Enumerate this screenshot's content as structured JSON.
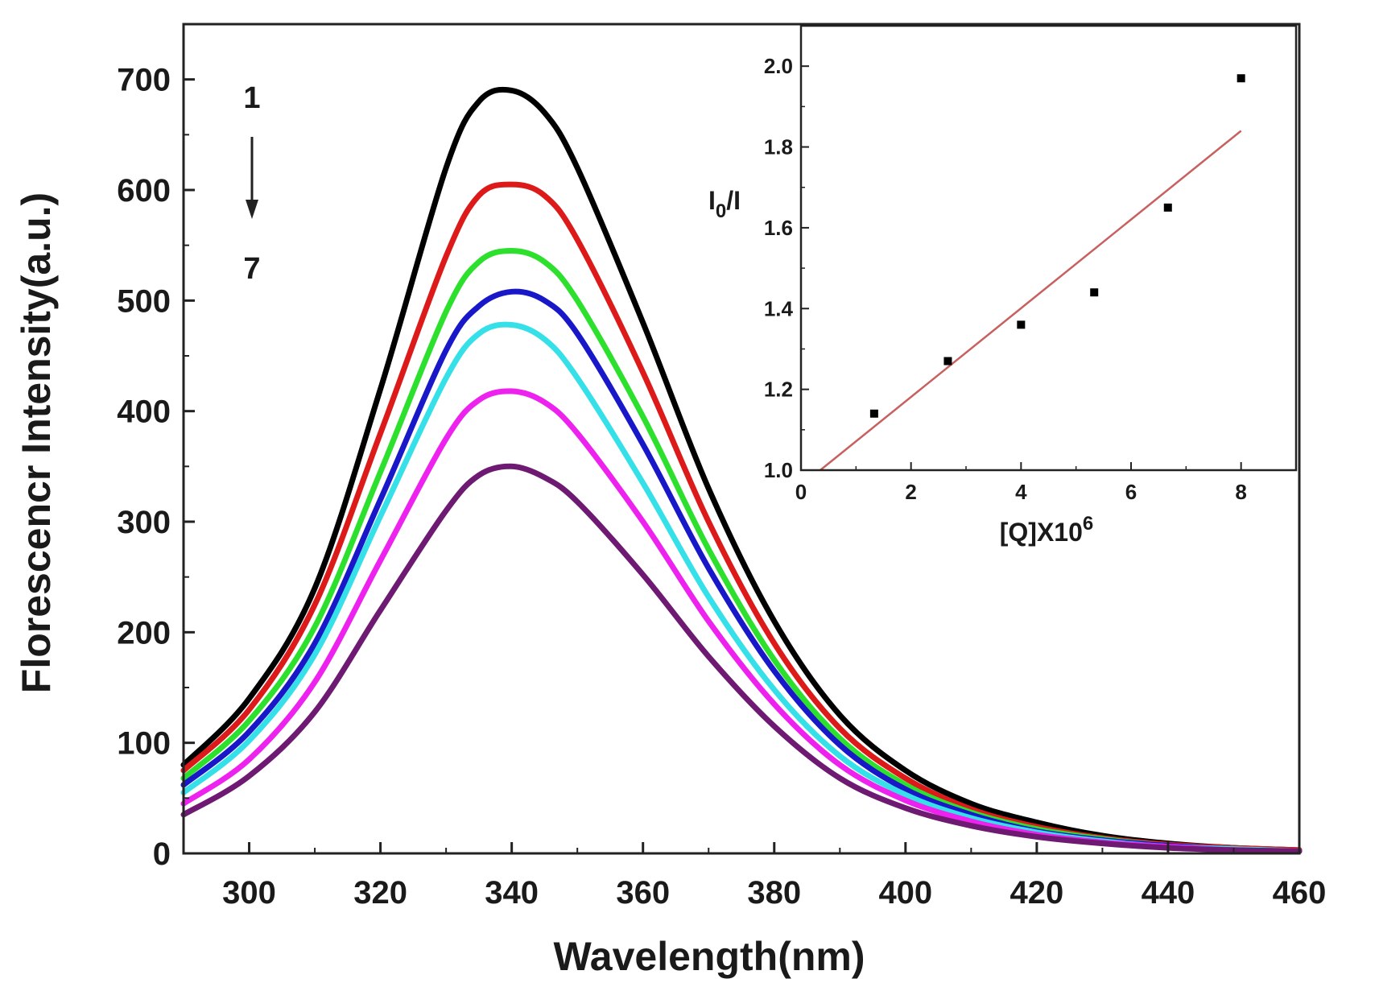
{
  "chart_data": [
    {
      "type": "line",
      "title": "",
      "xlabel": "Wavelength(nm)",
      "ylabel": "Florescencr Intensity(a.u.)",
      "xlim": [
        290,
        460
      ],
      "ylim": [
        0,
        750
      ],
      "xticks": [
        300,
        320,
        340,
        360,
        380,
        400,
        420,
        440,
        460
      ],
      "yticks": [
        0,
        100,
        200,
        300,
        400,
        500,
        600,
        700
      ],
      "grid": false,
      "series_order_labels": {
        "first": "1",
        "last": "7"
      },
      "series": [
        {
          "color": "#000000",
          "x": [
            290,
            300,
            310,
            320,
            330,
            335,
            340,
            345,
            350,
            360,
            370,
            380,
            390,
            400,
            410,
            420,
            430,
            440,
            450,
            460
          ],
          "y": [
            80,
            140,
            240,
            420,
            620,
            680,
            690,
            670,
            620,
            480,
            330,
            210,
            125,
            75,
            45,
            28,
            16,
            9,
            5,
            3
          ]
        },
        {
          "color": "#dd1a1a",
          "x": [
            290,
            300,
            310,
            320,
            330,
            335,
            340,
            345,
            350,
            360,
            370,
            380,
            390,
            400,
            410,
            420,
            430,
            440,
            450,
            460
          ],
          "y": [
            75,
            130,
            225,
            380,
            540,
            595,
            605,
            595,
            555,
            435,
            300,
            190,
            113,
            68,
            40,
            24,
            14,
            8,
            5,
            3
          ]
        },
        {
          "color": "#2ee02e",
          "x": [
            290,
            300,
            310,
            320,
            330,
            335,
            340,
            345,
            350,
            360,
            370,
            380,
            390,
            400,
            410,
            420,
            430,
            440,
            450,
            460
          ],
          "y": [
            68,
            120,
            205,
            345,
            490,
            535,
            545,
            535,
            500,
            395,
            275,
            175,
            104,
            62,
            37,
            22,
            13,
            7,
            4,
            2
          ]
        },
        {
          "color": "#1818c8",
          "x": [
            290,
            300,
            310,
            320,
            330,
            335,
            340,
            345,
            350,
            360,
            370,
            380,
            390,
            400,
            410,
            420,
            430,
            440,
            450,
            460
          ],
          "y": [
            62,
            110,
            190,
            320,
            455,
            495,
            508,
            500,
            470,
            370,
            258,
            165,
            98,
            58,
            35,
            20,
            12,
            7,
            4,
            2
          ]
        },
        {
          "color": "#35e0e8",
          "x": [
            290,
            300,
            310,
            320,
            330,
            335,
            340,
            345,
            350,
            360,
            370,
            380,
            390,
            400,
            410,
            420,
            430,
            440,
            450,
            460
          ],
          "y": [
            55,
            102,
            180,
            305,
            430,
            470,
            478,
            465,
            430,
            335,
            232,
            148,
            88,
            53,
            32,
            19,
            11,
            6,
            4,
            2
          ]
        },
        {
          "color": "#ee22ee",
          "x": [
            290,
            300,
            310,
            320,
            330,
            335,
            340,
            345,
            350,
            360,
            370,
            380,
            390,
            400,
            410,
            420,
            430,
            440,
            450,
            460
          ],
          "y": [
            45,
            85,
            155,
            265,
            375,
            410,
            418,
            408,
            380,
            300,
            210,
            135,
            80,
            48,
            29,
            17,
            10,
            6,
            3,
            2
          ]
        },
        {
          "color": "#6e1a72",
          "x": [
            290,
            300,
            310,
            320,
            330,
            335,
            340,
            345,
            350,
            360,
            370,
            380,
            390,
            400,
            410,
            420,
            430,
            440,
            450,
            460
          ],
          "y": [
            35,
            70,
            128,
            220,
            310,
            342,
            350,
            340,
            318,
            252,
            178,
            115,
            68,
            41,
            25,
            15,
            9,
            5,
            3,
            2
          ]
        }
      ]
    },
    {
      "type": "scatter",
      "title": "",
      "xlabel": "[Q]X10",
      "xlabel_superscript": "6",
      "ylabel": "I",
      "ylabel_subscript": "0",
      "ylabel_suffix": "/I",
      "xlim": [
        0,
        9
      ],
      "ylim": [
        1.0,
        2.1
      ],
      "xticks": [
        0,
        2,
        4,
        6,
        8
      ],
      "yticks": [
        1.0,
        1.2,
        1.4,
        1.6,
        1.8,
        2.0
      ],
      "x_tick_labels": [
        "0",
        "2",
        "4",
        "6",
        "8"
      ],
      "y_tick_labels": [
        "1.0",
        "1.2",
        "1.4",
        "1.6",
        "1.8",
        "2.0"
      ],
      "points": {
        "x": [
          1.33,
          2.67,
          4.0,
          5.33,
          6.67,
          8.0
        ],
        "y": [
          1.14,
          1.27,
          1.36,
          1.44,
          1.65,
          1.97
        ]
      },
      "fit": {
        "x": [
          0.35,
          8.0
        ],
        "y": [
          1.0,
          1.84
        ],
        "color": "#c86060"
      },
      "point_color": "#000000"
    }
  ]
}
